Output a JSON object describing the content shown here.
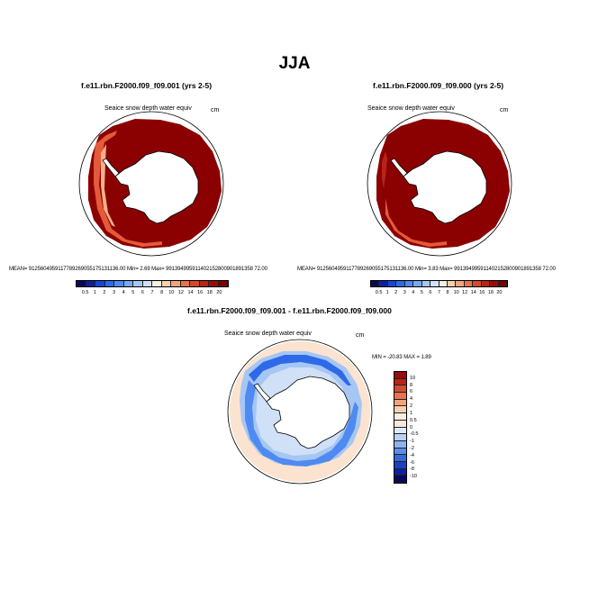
{
  "title": "JJA",
  "units": "cm",
  "panels": [
    {
      "name": "f.e11.rbn.F2000.f09_f09.001 (yrs 2-5)",
      "variable": "Seaice snow depth water equiv",
      "units": "cm",
      "stats": "MEAN= 9125604959117789269055175131136.00   Min=   2.69  Max= 991394995911402152800901891358 72.00"
    },
    {
      "name": "f.e11.rbn.F2000.f09_f09.000 (yrs 2-5)",
      "variable": "Seaice snow depth water equiv",
      "units": "cm",
      "stats": "MEAN= 9125604959117789269055175131136.00   Min=   3.83  Max= 991394995911402152800901891358 72.00"
    },
    {
      "name": "f.e11.rbn.F2000.f09_f09.001 - f.e11.rbn.F2000.f09_f09.000",
      "variable": "Seaice snow depth water equiv",
      "units": "cm",
      "stats": "MIN = -20.83  MAX =   1.89"
    }
  ],
  "colorbar_abs": {
    "labels": [
      "0.5",
      "1",
      "2",
      "3",
      "4",
      "5",
      "6",
      "7",
      "8",
      "10",
      "12",
      "14",
      "16",
      "18",
      "20"
    ],
    "colors": [
      "#08085a",
      "#0a20a0",
      "#1746d0",
      "#2e6ae8",
      "#4f8af0",
      "#78a8f2",
      "#a6c6f4",
      "#cfe0f7",
      "#f7eee4",
      "#f6d0b0",
      "#f2a47c",
      "#e7744f",
      "#d24a2f",
      "#b82417",
      "#990c09",
      "#7a0000"
    ]
  },
  "colorbar_diff": {
    "labels": [
      "10",
      "8",
      "6",
      "4",
      "2",
      "1",
      "0.5",
      "0",
      "-0.5",
      "-1",
      "-2",
      "-4",
      "-6",
      "-8",
      "-10"
    ],
    "colors": [
      "#990c09",
      "#b82417",
      "#d24a2f",
      "#e7744f",
      "#f2a47c",
      "#f6d0b0",
      "#f7eee4",
      "#fbe8da",
      "#ddeaf8",
      "#b8d2f4",
      "#8cb4f0",
      "#5b8ee8",
      "#3668dc",
      "#1a40c0",
      "#0a20a0",
      "#08085a"
    ]
  }
}
